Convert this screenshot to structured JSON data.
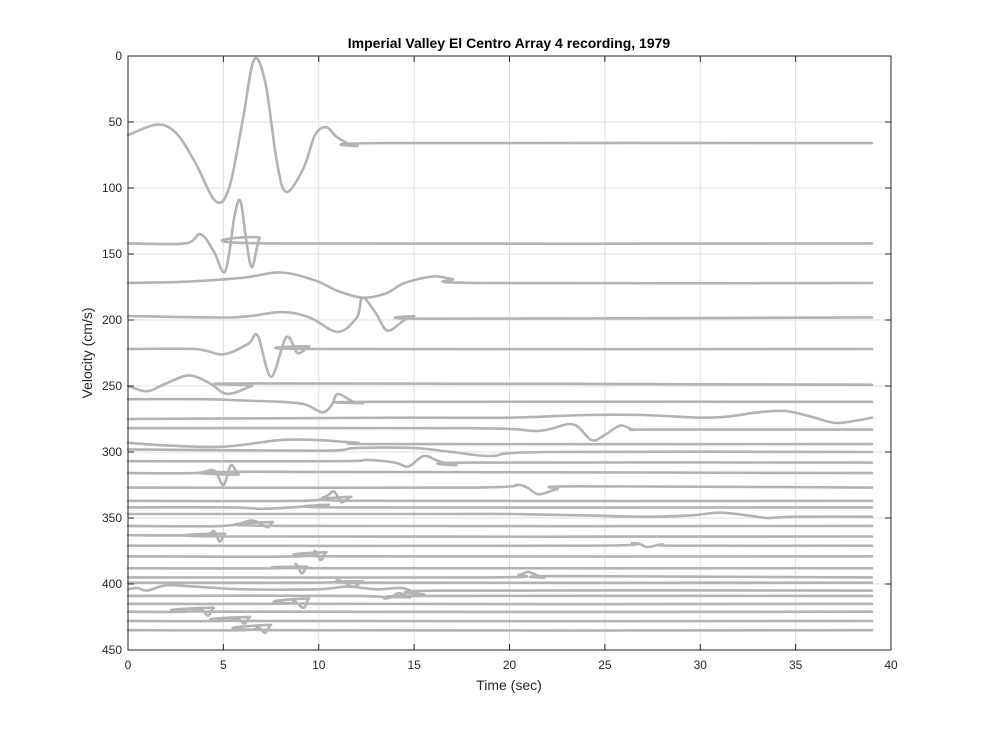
{
  "chart_data": {
    "type": "line",
    "title": "Imperial Valley El Centro Array 4 recording, 1979",
    "xlabel": "Time (sec)",
    "ylabel": "Velocity (cm/s)",
    "xlim": [
      0,
      40
    ],
    "ylim": [
      0,
      450
    ],
    "y_reversed": true,
    "grid": true,
    "line_color": "#b3b3b3",
    "xticks": [
      "0",
      "5",
      "10",
      "15",
      "20",
      "25",
      "30",
      "35",
      "40"
    ],
    "yticks": [
      "0",
      "50",
      "100",
      "150",
      "200",
      "250",
      "300",
      "350",
      "400",
      "450"
    ],
    "series": [
      {
        "points": [
          [
            0,
            60
          ],
          [
            1.5,
            52
          ],
          [
            2.5,
            58
          ],
          [
            3.5,
            80
          ],
          [
            4.6,
            110
          ],
          [
            5.3,
            100
          ],
          [
            6.0,
            50
          ],
          [
            6.6,
            3
          ],
          [
            7.2,
            20
          ],
          [
            7.8,
            80
          ],
          [
            8.3,
            103
          ],
          [
            9.2,
            85
          ],
          [
            9.8,
            60
          ],
          [
            10.4,
            54
          ],
          [
            11.0,
            62
          ],
          [
            12.0,
            68
          ],
          [
            13.5,
            66
          ],
          [
            39,
            66
          ]
        ]
      },
      {
        "points": [
          [
            0,
            142
          ],
          [
            3.0,
            142
          ],
          [
            3.8,
            135
          ],
          [
            4.5,
            148
          ],
          [
            5.1,
            163
          ],
          [
            5.6,
            120
          ],
          [
            5.9,
            110
          ],
          [
            6.2,
            140
          ],
          [
            6.5,
            160
          ],
          [
            6.9,
            138
          ],
          [
            7.4,
            142
          ],
          [
            39,
            142
          ]
        ]
      },
      {
        "points": [
          [
            0,
            172
          ],
          [
            3.0,
            171
          ],
          [
            6.0,
            168
          ],
          [
            8.0,
            164
          ],
          [
            9.8,
            170
          ],
          [
            11.0,
            178
          ],
          [
            12.3,
            183
          ],
          [
            13.5,
            180
          ],
          [
            14.5,
            172
          ],
          [
            16.0,
            167
          ],
          [
            17.0,
            169
          ],
          [
            18.5,
            172
          ],
          [
            39,
            172
          ]
        ]
      },
      {
        "points": [
          [
            0,
            197
          ],
          [
            5.5,
            198
          ],
          [
            8.0,
            194
          ],
          [
            9.5,
            198
          ],
          [
            11.0,
            209
          ],
          [
            12.0,
            198
          ],
          [
            12.3,
            183
          ],
          [
            13.0,
            195
          ],
          [
            13.6,
            208
          ],
          [
            14.5,
            200
          ],
          [
            15.0,
            197
          ],
          [
            16.0,
            199
          ],
          [
            39,
            198
          ]
        ]
      },
      {
        "points": [
          [
            0,
            222
          ],
          [
            3.5,
            222
          ],
          [
            5.0,
            226
          ],
          [
            6.3,
            218
          ],
          [
            6.8,
            212
          ],
          [
            7.5,
            243
          ],
          [
            8.3,
            213
          ],
          [
            8.9,
            225
          ],
          [
            9.5,
            220
          ],
          [
            10.0,
            222
          ],
          [
            39,
            222
          ]
        ]
      },
      {
        "points": [
          [
            0,
            250
          ],
          [
            1.0,
            254
          ],
          [
            2.0,
            248
          ],
          [
            3.2,
            242
          ],
          [
            4.3,
            248
          ],
          [
            5.2,
            256
          ],
          [
            6.5,
            250
          ],
          [
            7.0,
            248
          ],
          [
            39,
            249
          ]
        ]
      },
      {
        "points": [
          [
            0,
            260
          ],
          [
            4.0,
            260
          ],
          [
            6.0,
            261
          ],
          [
            8.0,
            262
          ],
          [
            9.3,
            264
          ],
          [
            10.2,
            270
          ],
          [
            10.7,
            264
          ],
          [
            11.0,
            256
          ],
          [
            11.8,
            262
          ],
          [
            12.3,
            263
          ],
          [
            13.0,
            262
          ],
          [
            39,
            262
          ]
        ]
      },
      {
        "points": [
          [
            0,
            275
          ],
          [
            14.0,
            274
          ],
          [
            20.0,
            274
          ],
          [
            24.0,
            272
          ],
          [
            27.0,
            272
          ],
          [
            30.0,
            274
          ],
          [
            31.5,
            273
          ],
          [
            33.0,
            270
          ],
          [
            34.5,
            269
          ],
          [
            36.0,
            274
          ],
          [
            37.2,
            278
          ],
          [
            39,
            274
          ]
        ]
      },
      {
        "points": [
          [
            0,
            282
          ],
          [
            18.0,
            282
          ],
          [
            21.5,
            284
          ],
          [
            23.3,
            279
          ],
          [
            24.3,
            291
          ],
          [
            25.0,
            287
          ],
          [
            25.8,
            280
          ],
          [
            26.5,
            283
          ],
          [
            27.5,
            283
          ],
          [
            39,
            283
          ]
        ]
      },
      {
        "points": [
          [
            0,
            293
          ],
          [
            2.0,
            295
          ],
          [
            5.0,
            296
          ],
          [
            8.0,
            291
          ],
          [
            10.0,
            291
          ],
          [
            12.0,
            293
          ],
          [
            14.0,
            294
          ],
          [
            39,
            294
          ]
        ]
      },
      {
        "points": [
          [
            0,
            298
          ],
          [
            10.0,
            299
          ],
          [
            12.0,
            297
          ],
          [
            15.0,
            297
          ],
          [
            17.0,
            300
          ],
          [
            19.0,
            303
          ],
          [
            22.0,
            300
          ],
          [
            39,
            300
          ]
        ]
      },
      {
        "points": [
          [
            0,
            307
          ],
          [
            11.0,
            307
          ],
          [
            12.5,
            306
          ],
          [
            14.0,
            308
          ],
          [
            14.7,
            311
          ],
          [
            15.5,
            303
          ],
          [
            16.3,
            307
          ],
          [
            17.2,
            310
          ],
          [
            18.0,
            308
          ],
          [
            39,
            308
          ]
        ]
      },
      {
        "points": [
          [
            0,
            316
          ],
          [
            3.5,
            316
          ],
          [
            4.5,
            314
          ],
          [
            5.0,
            325
          ],
          [
            5.4,
            310
          ],
          [
            5.8,
            317
          ],
          [
            6.3,
            315
          ],
          [
            39,
            316
          ]
        ]
      },
      {
        "points": [
          [
            0,
            327
          ],
          [
            18.0,
            327
          ],
          [
            20.5,
            325
          ],
          [
            21.5,
            332
          ],
          [
            22.5,
            328
          ],
          [
            23.5,
            326
          ],
          [
            39,
            327
          ]
        ]
      },
      {
        "points": [
          [
            0,
            337
          ],
          [
            9.0,
            337
          ],
          [
            10.3,
            334
          ],
          [
            10.8,
            330
          ],
          [
            11.2,
            338
          ],
          [
            11.7,
            334
          ],
          [
            12.2,
            337
          ],
          [
            39,
            337
          ]
        ]
      },
      {
        "points": [
          [
            0,
            342
          ],
          [
            5.5,
            342
          ],
          [
            7.0,
            343
          ],
          [
            8.5,
            342
          ],
          [
            9.5,
            341
          ],
          [
            10.5,
            340
          ],
          [
            11.5,
            342
          ],
          [
            39,
            342
          ]
        ]
      },
      {
        "points": [
          [
            0,
            347
          ],
          [
            16.0,
            347
          ],
          [
            20.0,
            347
          ],
          [
            24.0,
            348
          ],
          [
            27.0,
            349
          ],
          [
            29.5,
            348
          ],
          [
            31.0,
            346
          ],
          [
            32.5,
            348
          ],
          [
            33.5,
            350
          ],
          [
            35.0,
            349
          ],
          [
            39,
            349
          ]
        ]
      },
      {
        "points": [
          [
            0,
            356
          ],
          [
            5.0,
            356
          ],
          [
            6.5,
            352
          ],
          [
            7.3,
            357
          ],
          [
            7.6,
            353
          ],
          [
            8.0,
            356
          ],
          [
            39,
            356
          ]
        ]
      },
      {
        "points": [
          [
            0,
            363
          ],
          [
            3.8,
            363
          ],
          [
            4.5,
            360
          ],
          [
            4.8,
            368
          ],
          [
            5.1,
            362
          ],
          [
            5.5,
            364
          ],
          [
            39,
            364
          ]
        ]
      },
      {
        "points": [
          [
            0,
            371
          ],
          [
            24.0,
            371
          ],
          [
            26.5,
            369
          ],
          [
            27.2,
            372
          ],
          [
            28.0,
            370
          ],
          [
            28.8,
            371
          ],
          [
            39,
            371
          ]
        ]
      },
      {
        "points": [
          [
            0,
            379
          ],
          [
            9.0,
            379
          ],
          [
            9.8,
            375
          ],
          [
            10.1,
            382
          ],
          [
            10.4,
            376
          ],
          [
            10.9,
            379
          ],
          [
            39,
            379
          ]
        ]
      },
      {
        "points": [
          [
            0,
            388
          ],
          [
            8.0,
            388
          ],
          [
            8.8,
            385
          ],
          [
            9.1,
            392
          ],
          [
            9.4,
            387
          ],
          [
            9.8,
            388
          ],
          [
            39,
            388
          ]
        ]
      },
      {
        "points": [
          [
            0,
            395
          ],
          [
            19.0,
            395
          ],
          [
            20.5,
            393
          ],
          [
            21.0,
            391
          ],
          [
            21.8,
            395
          ],
          [
            22.5,
            394
          ],
          [
            39,
            395
          ]
        ]
      },
      {
        "points": [
          [
            0,
            399
          ],
          [
            10.0,
            399
          ],
          [
            11.0,
            397
          ],
          [
            11.8,
            402
          ],
          [
            12.3,
            398
          ],
          [
            13.0,
            399
          ],
          [
            39,
            399
          ]
        ]
      },
      {
        "points": [
          [
            0,
            404
          ],
          [
            0.5,
            403
          ],
          [
            1.0,
            405
          ],
          [
            2.0,
            401
          ],
          [
            3.5,
            402
          ],
          [
            6.0,
            404
          ],
          [
            10.0,
            404
          ],
          [
            11.5,
            402
          ],
          [
            13.0,
            404
          ],
          [
            14.3,
            403
          ],
          [
            15.0,
            406
          ],
          [
            15.5,
            408
          ],
          [
            16.5,
            405
          ],
          [
            39,
            405
          ]
        ]
      },
      {
        "points": [
          [
            0,
            409
          ],
          [
            12.0,
            409
          ],
          [
            13.5,
            411
          ],
          [
            14.2,
            407
          ],
          [
            14.8,
            410
          ],
          [
            15.5,
            409
          ],
          [
            39,
            409
          ]
        ]
      },
      {
        "points": [
          [
            0,
            415
          ],
          [
            8.0,
            415
          ],
          [
            8.7,
            413
          ],
          [
            9.2,
            418
          ],
          [
            9.5,
            411
          ],
          [
            9.9,
            415
          ],
          [
            39,
            415
          ]
        ]
      },
      {
        "points": [
          [
            0,
            421
          ],
          [
            3.0,
            421
          ],
          [
            3.8,
            419
          ],
          [
            4.2,
            424
          ],
          [
            4.5,
            418
          ],
          [
            4.9,
            421
          ],
          [
            39,
            421
          ]
        ]
      },
      {
        "points": [
          [
            0,
            428
          ],
          [
            5.0,
            428
          ],
          [
            5.7,
            426
          ],
          [
            6.1,
            430
          ],
          [
            6.4,
            425
          ],
          [
            6.8,
            428
          ],
          [
            39,
            428
          ]
        ]
      },
      {
        "points": [
          [
            0,
            435
          ],
          [
            6.0,
            435
          ],
          [
            6.8,
            433
          ],
          [
            7.2,
            437
          ],
          [
            7.5,
            431
          ],
          [
            7.9,
            435
          ],
          [
            39,
            435
          ]
        ]
      }
    ]
  }
}
